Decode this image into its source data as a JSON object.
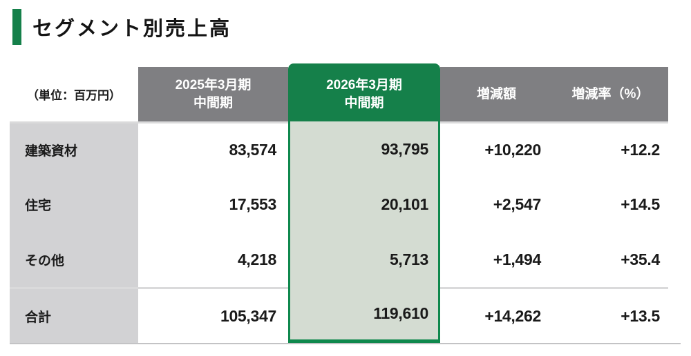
{
  "page_title": "セグメント別売上高",
  "table": {
    "unit_label": "（単位：百万円）",
    "col_2025": {
      "line1": "2025年3月期",
      "line2": "中間期"
    },
    "col_2026": {
      "line1": "2026年3月期",
      "line2": "中間期"
    },
    "col_change": "増減額",
    "col_rate": "増減率（%）",
    "rows": [
      {
        "label": "建築資材",
        "fy2025": "83,574",
        "fy2026": "93,795",
        "change": "+10,220",
        "rate": "+12.2"
      },
      {
        "label": "住宅",
        "fy2025": "17,553",
        "fy2026": "20,101",
        "change": "+2,547",
        "rate": "+14.5"
      },
      {
        "label": "その他",
        "fy2025": "4,218",
        "fy2026": "5,713",
        "change": "+1,494",
        "rate": "+35.4"
      },
      {
        "label": "合計",
        "fy2025": "105,347",
        "fy2026": "119,610",
        "change": "+14,262",
        "rate": "+13.5"
      }
    ]
  },
  "colors": {
    "accent_green": "#15804A",
    "highlight_border_green": "#0F884D",
    "highlight_fill_green": "#D4DCD2",
    "header_gray": "#7F7F82",
    "label_gray": "#D2D2D4",
    "separator_gray": "#DADADB",
    "text": "#1A1A1A"
  }
}
